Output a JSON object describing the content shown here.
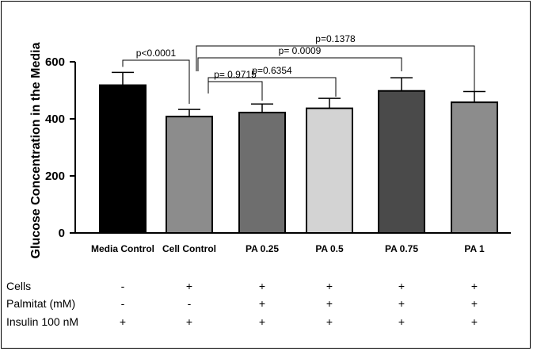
{
  "chart_data": {
    "type": "bar",
    "title": "",
    "xlabel": "",
    "ylabel": "Glucose Concentration in the  Media",
    "ylim": [
      0,
      600
    ],
    "yticks": [
      0,
      200,
      400,
      600
    ],
    "grid": false,
    "categories": [
      "Media Control",
      "Cell Control",
      "PA 0.25",
      "PA 0.5",
      "PA 0.75",
      "PA 1"
    ],
    "values": [
      518,
      408,
      422,
      437,
      498,
      458
    ],
    "errors": [
      45,
      25,
      30,
      35,
      46,
      38
    ],
    "colors": [
      "#000000",
      "#8c8c8c",
      "#6e6e6e",
      "#d3d3d3",
      "#4a4a4a",
      "#8c8c8c"
    ],
    "annotations": [
      {
        "text": "p<0.0001",
        "from": 0,
        "to": 1
      },
      {
        "text": "p= 0.9715",
        "from": 1,
        "to": 2
      },
      {
        "text": "p=0.6354",
        "from": 1,
        "to": 3
      },
      {
        "text": "p= 0.0009",
        "from": 1,
        "to": 4
      },
      {
        "text": "p=0.1378",
        "from": 1,
        "to": 5
      }
    ]
  },
  "conditions": [
    {
      "label": "Cells",
      "values": [
        "-",
        "+",
        "+",
        "+",
        "+",
        "+"
      ]
    },
    {
      "label": "Palmitat (mM)",
      "values": [
        "-",
        "-",
        "+",
        "+",
        "+",
        "+"
      ]
    },
    {
      "label": "Insulin 100 nM",
      "values": [
        "+",
        "+",
        "+",
        "+",
        "+",
        "+"
      ]
    }
  ]
}
